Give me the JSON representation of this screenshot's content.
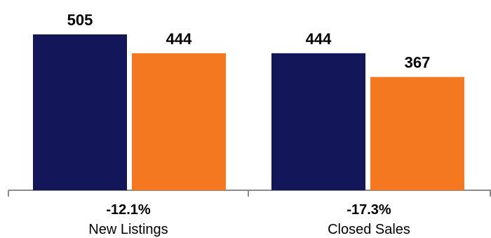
{
  "chart_data": {
    "type": "bar",
    "categories": [
      "New Listings",
      "Closed Sales"
    ],
    "series": [
      {
        "values": [
          505,
          444
        ],
        "color": "#13175a"
      },
      {
        "values": [
          444,
          367
        ],
        "color": "#f47820"
      }
    ],
    "changes": [
      "-12.1%",
      "-17.3%"
    ],
    "data_labels": [
      [
        "505",
        "444"
      ],
      [
        "444",
        "367"
      ]
    ],
    "ylim": [
      0,
      505
    ],
    "grid": false,
    "legend": "none"
  }
}
